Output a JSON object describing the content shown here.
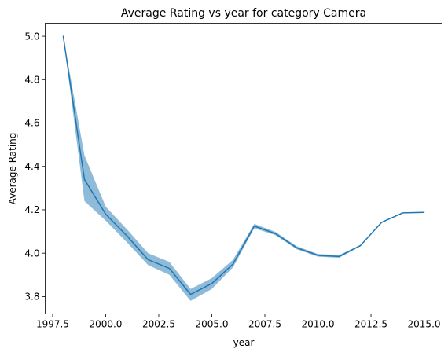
{
  "chart_data": {
    "type": "line",
    "title": "Average Rating vs year for category Camera",
    "xlabel": "year",
    "ylabel": "Average Rating",
    "xlim": [
      1997.15,
      2015.85
    ],
    "ylim": [
      3.72,
      5.06
    ],
    "xticks": [
      1997.5,
      2000.0,
      2002.5,
      2005.0,
      2007.5,
      2010.0,
      2012.5,
      2015.0
    ],
    "xtick_labels": [
      "1997.5",
      "2000.0",
      "2002.5",
      "2005.0",
      "2007.5",
      "2010.0",
      "2012.5",
      "2015.0"
    ],
    "yticks": [
      3.8,
      4.0,
      4.2,
      4.4,
      4.6,
      4.8,
      5.0
    ],
    "ytick_labels": [
      "3.8",
      "4.0",
      "4.2",
      "4.4",
      "4.6",
      "4.8",
      "5.0"
    ],
    "grid": false,
    "legend": "none",
    "series": [
      {
        "color": "#1f77b4",
        "band_color": "#1f77b4",
        "x": [
          1998,
          1999,
          2000,
          2001,
          2002,
          2003,
          2004,
          2005,
          2006,
          2007,
          2008,
          2009,
          2010,
          2011,
          2012,
          2013,
          2014,
          2015
        ],
        "y": [
          5.0,
          4.34,
          4.18,
          4.08,
          3.97,
          3.93,
          3.81,
          3.86,
          3.95,
          4.125,
          4.09,
          4.025,
          3.99,
          3.985,
          4.035,
          4.142,
          4.186,
          4.188
        ],
        "y_lower": [
          5.0,
          4.24,
          4.15,
          4.05,
          3.945,
          3.9,
          3.78,
          3.835,
          3.935,
          4.115,
          4.083,
          4.018,
          3.984,
          3.979,
          4.032,
          4.14,
          4.184,
          4.186
        ],
        "y_upper": [
          5.0,
          4.45,
          4.215,
          4.11,
          4.0,
          3.96,
          3.835,
          3.885,
          3.97,
          4.135,
          4.098,
          4.032,
          3.996,
          3.991,
          4.038,
          4.145,
          4.188,
          4.19
        ]
      }
    ]
  }
}
